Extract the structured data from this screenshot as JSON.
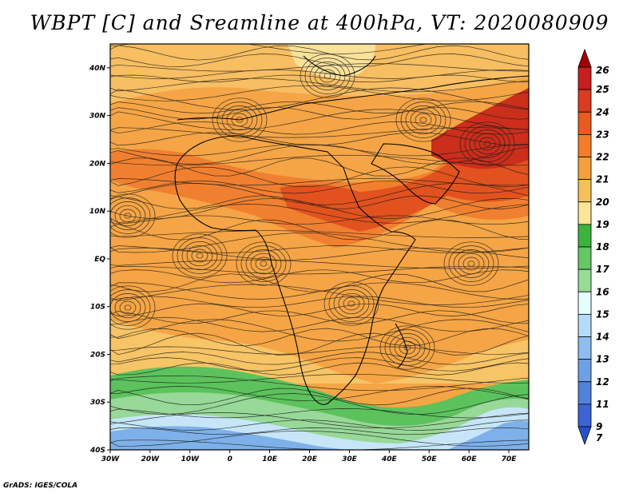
{
  "title": "WBPT [C] and Sreamline at 400hPa, VT: 2020080909",
  "footer": "GrADS: IGES/COLA",
  "map": {
    "lon_range": [
      -30,
      75
    ],
    "lat_range": [
      -40,
      45
    ],
    "lon_labels": [
      {
        "value": -30,
        "label": "30W"
      },
      {
        "value": -20,
        "label": "20W"
      },
      {
        "value": -10,
        "label": "10W"
      },
      {
        "value": 0,
        "label": "0"
      },
      {
        "value": 10,
        "label": "10E"
      },
      {
        "value": 20,
        "label": "20E"
      },
      {
        "value": 30,
        "label": "30E"
      },
      {
        "value": 40,
        "label": "40E"
      },
      {
        "value": 50,
        "label": "50E"
      },
      {
        "value": 60,
        "label": "60E"
      },
      {
        "value": 70,
        "label": "70E"
      }
    ],
    "lat_labels": [
      {
        "value": 40,
        "label": "40N"
      },
      {
        "value": 30,
        "label": "30N"
      },
      {
        "value": 20,
        "label": "20N"
      },
      {
        "value": 10,
        "label": "10N"
      },
      {
        "value": 0,
        "label": "EQ"
      },
      {
        "value": -10,
        "label": "10S"
      },
      {
        "value": -20,
        "label": "20S"
      },
      {
        "value": -30,
        "label": "30S"
      },
      {
        "value": -40,
        "label": "40S"
      }
    ]
  },
  "colorbar": {
    "labels": [
      "26",
      "25",
      "24",
      "23",
      "22",
      "21",
      "20",
      "19",
      "18",
      "17",
      "16",
      "15",
      "14",
      "13",
      "12",
      "11",
      "9",
      "7"
    ],
    "colors": [
      "#a50000",
      "#c81e1e",
      "#dc3c1e",
      "#eb5a1e",
      "#f57d28",
      "#f5a03c",
      "#f5c05a",
      "#fae696",
      "#3cb43c",
      "#64c864",
      "#96dc96",
      "#e6ffff",
      "#b4dcfa",
      "#8cbef0",
      "#6ea0e6",
      "#5082dc",
      "#3c64d2",
      "#2850c8"
    ]
  }
}
